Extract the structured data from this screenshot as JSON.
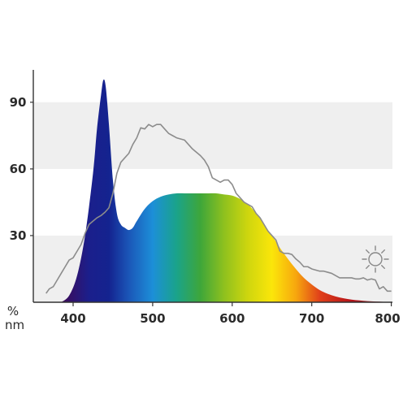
{
  "chart_data": {
    "type": "area",
    "title": "",
    "xlabel": "nm",
    "ylabel": "%",
    "xlim": [
      364,
      800
    ],
    "ylim": [
      0,
      105
    ],
    "x_ticks": [
      400,
      500,
      600,
      700,
      800
    ],
    "x_tick_labels": [
      "400",
      "500",
      "600",
      "700",
      "800"
    ],
    "y_ticks": [
      30,
      60,
      90
    ],
    "y_tick_labels": [
      "30",
      "60",
      "90"
    ],
    "grid": "alternating horizontal bands",
    "legend": "none",
    "icon": "sun-icon",
    "colors": {
      "band": "#efefef",
      "reference_line": "#8c8c8c",
      "axis": "#333333",
      "text": "#2b2b2b"
    },
    "spectrum_gradient": [
      {
        "nm": 390,
        "color": "#3a0d5e"
      },
      {
        "nm": 420,
        "color": "#1b1f8c"
      },
      {
        "nm": 445,
        "color": "#14238f"
      },
      {
        "nm": 470,
        "color": "#1b56b8"
      },
      {
        "nm": 500,
        "color": "#1c8fd8"
      },
      {
        "nm": 530,
        "color": "#1aa38a"
      },
      {
        "nm": 560,
        "color": "#3ea63a"
      },
      {
        "nm": 590,
        "color": "#8fc11e"
      },
      {
        "nm": 620,
        "color": "#cfd60e"
      },
      {
        "nm": 650,
        "color": "#fbe60a"
      },
      {
        "nm": 680,
        "color": "#f7a70e"
      },
      {
        "nm": 710,
        "color": "#e0401a"
      },
      {
        "nm": 750,
        "color": "#b51218"
      },
      {
        "nm": 800,
        "color": "#7a0a10"
      }
    ],
    "series": [
      {
        "role": "lamp-spectrum",
        "fill": "gradient",
        "x": [
          385,
          395,
          405,
          415,
          425,
          430,
          435,
          438,
          441,
          445,
          450,
          455,
          460,
          465,
          470,
          475,
          480,
          490,
          500,
          510,
          520,
          530,
          540,
          550,
          560,
          570,
          580,
          590,
          600,
          610,
          620,
          630,
          640,
          650,
          660,
          670,
          680,
          690,
          700,
          710,
          720,
          730,
          740,
          750,
          760,
          770,
          780,
          790,
          800
        ],
        "y": [
          0,
          3,
          12,
          30,
          58,
          78,
          93,
          100,
          97,
          80,
          55,
          40,
          35,
          33.5,
          32.5,
          33.5,
          36.5,
          42,
          45.5,
          47.5,
          48.5,
          49,
          49,
          49,
          49,
          49,
          49,
          48.5,
          48,
          46.5,
          44,
          40,
          35,
          30,
          24.5,
          19.5,
          15,
          11,
          8,
          5.5,
          3.8,
          2.6,
          1.8,
          1.2,
          0.8,
          0.5,
          0.3,
          0.2,
          0.1
        ]
      },
      {
        "role": "reference-curve",
        "fill": "none",
        "x": [
          366,
          370,
          375,
          380,
          385,
          390,
          395,
          400,
          405,
          410,
          415,
          420,
          425,
          430,
          435,
          440,
          445,
          450,
          455,
          460,
          465,
          470,
          475,
          480,
          485,
          490,
          495,
          500,
          505,
          510,
          515,
          520,
          525,
          530,
          535,
          540,
          545,
          550,
          555,
          560,
          565,
          570,
          575,
          580,
          585,
          590,
          595,
          600,
          605,
          610,
          615,
          620,
          625,
          630,
          635,
          640,
          645,
          650,
          655,
          660,
          665,
          670,
          675,
          680,
          685,
          690,
          695,
          700,
          705,
          710,
          715,
          720,
          725,
          730,
          735,
          740,
          745,
          750,
          755,
          760,
          765,
          770,
          775,
          780,
          785,
          790,
          795,
          800
        ],
        "y": [
          4,
          6,
          7,
          10,
          13,
          16,
          19,
          20,
          23,
          26,
          31,
          35,
          36.5,
          38,
          39,
          40.5,
          42.5,
          49,
          58,
          63,
          65,
          67,
          71,
          74,
          78.5,
          78,
          80,
          79,
          80,
          80,
          78,
          76,
          75,
          74,
          73.5,
          73,
          71,
          69,
          67.5,
          66,
          64,
          61,
          56,
          55,
          54,
          55,
          55,
          53,
          49,
          47,
          45,
          44,
          43,
          40,
          38,
          35,
          32,
          30,
          28,
          23,
          22,
          22,
          21.5,
          19.5,
          18,
          16,
          16,
          15,
          14.5,
          14,
          14,
          13.5,
          13,
          12,
          11,
          11,
          11,
          11,
          10.5,
          10.5,
          11,
          10,
          10.5,
          10,
          6,
          7,
          5,
          5
        ]
      }
    ]
  }
}
